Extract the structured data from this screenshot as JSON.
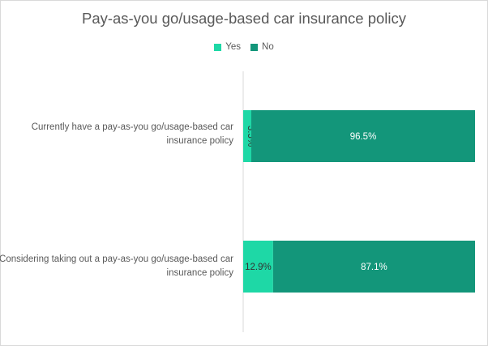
{
  "chart_data": {
    "type": "bar",
    "orientation": "horizontal",
    "stacked": true,
    "title": "Pay-as-you go/usage-based car insurance policy",
    "categories": [
      "Currently have a pay-as-you go/usage-based car insurance policy",
      "Considering taking out a pay-as-you go/usage-based car insurance policy"
    ],
    "series": [
      {
        "name": "Yes",
        "color": "#1ed8a6",
        "values": [
          3.5,
          12.9
        ],
        "labels": [
          "3.5%",
          "12.9%"
        ]
      },
      {
        "name": "No",
        "color": "#13967a",
        "values": [
          96.5,
          87.1
        ],
        "labels": [
          "96.5%",
          "87.1%"
        ]
      }
    ],
    "xlim": [
      0,
      100
    ],
    "legend": "top-center",
    "grid": false
  }
}
